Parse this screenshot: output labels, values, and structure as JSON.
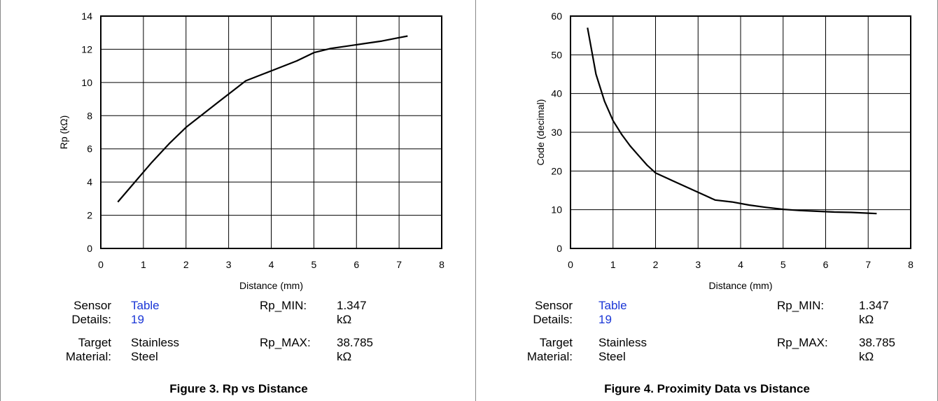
{
  "chart_data": [
    {
      "type": "line",
      "xlabel": "Distance (mm)",
      "ylabel": "Rp (kΩ)",
      "xlim": [
        0,
        8
      ],
      "ylim": [
        0,
        14
      ],
      "xticks": [
        "0",
        "1",
        "2",
        "3",
        "4",
        "5",
        "6",
        "7",
        "8"
      ],
      "yticks": [
        "0",
        "2",
        "4",
        "6",
        "8",
        "10",
        "12",
        "14"
      ],
      "grid": true,
      "series": [
        {
          "x": [
            0.4,
            0.8,
            1.2,
            1.6,
            2.0,
            2.4,
            2.8,
            3.2,
            3.4,
            3.8,
            4.2,
            4.6,
            5.0,
            5.4,
            5.8,
            6.2,
            6.6,
            7.0,
            7.2
          ],
          "y": [
            2.8,
            4.0,
            5.2,
            6.3,
            7.3,
            8.1,
            8.9,
            9.7,
            10.1,
            10.5,
            10.9,
            11.3,
            11.8,
            12.05,
            12.2,
            12.35,
            12.5,
            12.7,
            12.8
          ]
        }
      ]
    },
    {
      "type": "line",
      "xlabel": "Distance (mm)",
      "ylabel": "Code (decimal)",
      "xlim": [
        0,
        8
      ],
      "ylim": [
        0,
        60
      ],
      "xticks": [
        "0",
        "1",
        "2",
        "3",
        "4",
        "5",
        "6",
        "7",
        "8"
      ],
      "yticks": [
        "0",
        "10",
        "20",
        "30",
        "40",
        "50",
        "60"
      ],
      "grid": true,
      "series": [
        {
          "x": [
            0.4,
            0.6,
            0.8,
            1.0,
            1.2,
            1.4,
            1.6,
            1.8,
            2.0,
            2.4,
            2.8,
            3.2,
            3.4,
            3.8,
            4.2,
            4.6,
            5.0,
            5.4,
            5.8,
            6.2,
            6.6,
            7.0,
            7.2
          ],
          "y": [
            57,
            45,
            38,
            33,
            29.5,
            26.5,
            24,
            21.5,
            19.5,
            17.5,
            15.5,
            13.5,
            12.5,
            12.0,
            11.2,
            10.6,
            10.1,
            9.8,
            9.6,
            9.4,
            9.3,
            9.1,
            9.0
          ]
        }
      ]
    }
  ],
  "left": {
    "sensor_label": "Sensor Details:",
    "sensor_link": "Table 19",
    "rp_min_label": "Rp_MIN:",
    "rp_min_value": "1.347 kΩ",
    "target_label": "Target Material:",
    "target_value": "Stainless Steel",
    "rp_max_label": "Rp_MAX:",
    "rp_max_value": "38.785 kΩ",
    "caption": "Figure 3. Rp vs Distance"
  },
  "right": {
    "sensor_label": "Sensor Details:",
    "sensor_link": "Table 19",
    "rp_min_label": "Rp_MIN:",
    "rp_min_value": "1.347 kΩ",
    "target_label": "Target Material:",
    "target_value": "Stainless Steel",
    "rp_max_label": "Rp_MAX:",
    "rp_max_value": "38.785 kΩ",
    "caption": "Figure 4. Proximity Data vs Distance"
  }
}
